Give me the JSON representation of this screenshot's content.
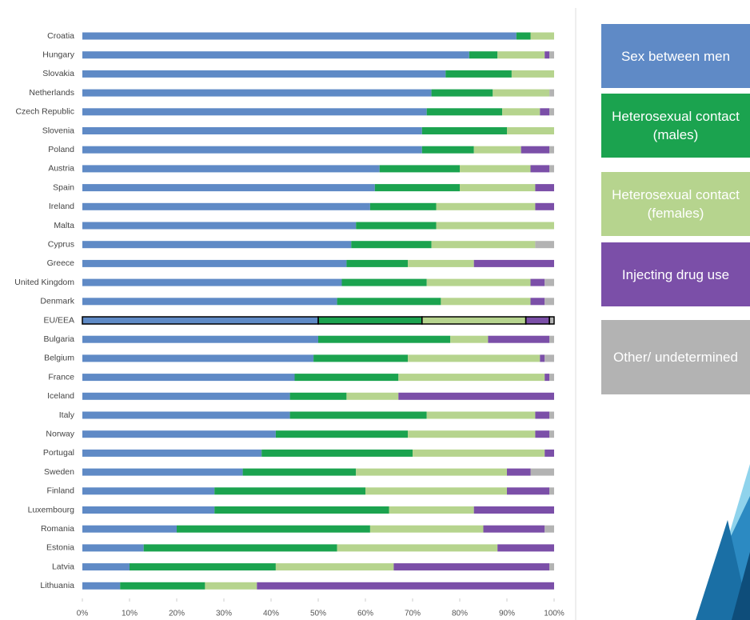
{
  "chart_data": {
    "type": "stacked-bar-horizontal",
    "categories": [
      "Croatia",
      "Hungary",
      "Slovakia",
      "Netherlands",
      "Czech Republic",
      "Slovenia",
      "Poland",
      "Austria",
      "Spain",
      "Ireland",
      "Malta",
      "Cyprus",
      "Greece",
      "United Kingdom",
      "Denmark",
      "EU/EEA",
      "Bulgaria",
      "Belgium",
      "France",
      "Iceland",
      "Italy",
      "Norway",
      "Portugal",
      "Sweden",
      "Finland",
      "Luxembourg",
      "Romania",
      "Estonia",
      "Latvia",
      "Lithuania"
    ],
    "highlight_category": "EU/EEA",
    "series": [
      {
        "name": "Sex between men",
        "color": "#5f8ac6",
        "values": [
          92,
          82,
          77,
          74,
          73,
          72,
          72,
          63,
          62,
          61,
          58,
          57,
          56,
          55,
          54,
          50,
          50,
          49,
          45,
          44,
          44,
          41,
          38,
          34,
          28,
          28,
          20,
          13,
          10,
          8
        ]
      },
      {
        "name": "Heterosexual contact (males)",
        "color": "#1ba34f",
        "values": [
          3,
          6,
          14,
          13,
          16,
          18,
          11,
          17,
          18,
          14,
          17,
          17,
          13,
          18,
          22,
          22,
          28,
          20,
          22,
          12,
          29,
          28,
          32,
          24,
          32,
          37,
          41,
          41,
          31,
          18
        ]
      },
      {
        "name": "Heterosexual contact (females)",
        "color": "#b6d48e",
        "values": [
          5,
          10,
          9,
          12,
          8,
          10,
          10,
          15,
          16,
          21,
          25,
          22,
          14,
          22,
          19,
          22,
          8,
          28,
          31,
          11,
          23,
          27,
          28,
          32,
          30,
          18,
          24,
          34,
          25,
          11
        ]
      },
      {
        "name": "Injecting drug use",
        "color": "#7b4fa8",
        "values": [
          0,
          1,
          0,
          0,
          2,
          0,
          6,
          4,
          4,
          4,
          0,
          0,
          17,
          3,
          3,
          5,
          13,
          1,
          1,
          33,
          3,
          3,
          2,
          5,
          9,
          17,
          13,
          12,
          33,
          63
        ]
      },
      {
        "name": "Other/ undetermined",
        "color": "#b3b3b3",
        "values": [
          0,
          1,
          0,
          1,
          1,
          0,
          1,
          1,
          0,
          0,
          0,
          4,
          0,
          2,
          2,
          1,
          1,
          2,
          1,
          0,
          1,
          1,
          0,
          5,
          1,
          0,
          2,
          0,
          1,
          0
        ]
      }
    ],
    "xlim": [
      0,
      100
    ],
    "xticks": [
      {
        "value": 0,
        "label": "0%"
      },
      {
        "value": 10,
        "label": "10%"
      },
      {
        "value": 20,
        "label": "20%"
      },
      {
        "value": 30,
        "label": "30%"
      },
      {
        "value": 40,
        "label": "40%"
      },
      {
        "value": 50,
        "label": "50%"
      },
      {
        "value": 60,
        "label": "60%"
      },
      {
        "value": 70,
        "label": "70%"
      },
      {
        "value": 80,
        "label": "80%"
      },
      {
        "value": 90,
        "label": "90%"
      },
      {
        "value": 100,
        "label": "100%"
      }
    ]
  }
}
